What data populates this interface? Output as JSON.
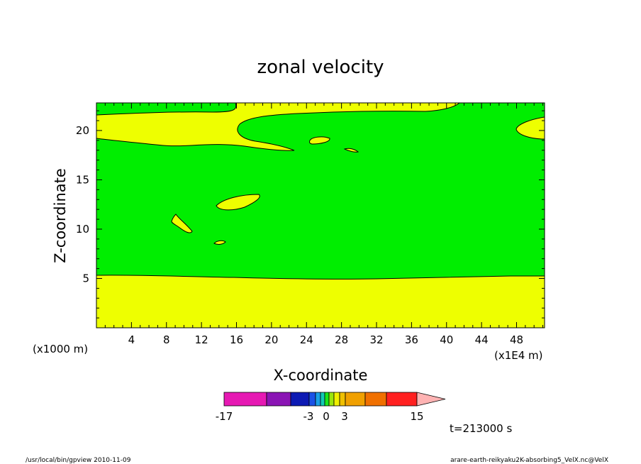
{
  "chart_data": {
    "type": "heatmap",
    "title": "zonal velocity",
    "xlabel": "X-coordinate",
    "ylabel": "Z-coordinate",
    "x_unit_left": "(x1000 m)",
    "x_unit_right": "(x1E4 m)",
    "x_ticks": [
      "4",
      "8",
      "12",
      "16",
      "20",
      "24",
      "28",
      "32",
      "36",
      "40",
      "44",
      "48"
    ],
    "x_tick_values": [
      4,
      8,
      12,
      16,
      20,
      24,
      28,
      32,
      36,
      40,
      44,
      48
    ],
    "y_ticks": [
      "5",
      "10",
      "15",
      "20"
    ],
    "y_tick_values": [
      5,
      10,
      15,
      20
    ],
    "xlim": [
      0,
      51.2
    ],
    "ylim": [
      0,
      22.8
    ],
    "colorbar": {
      "min_label": "-17",
      "max_label": "15",
      "mid_labels": [
        "-3",
        "0",
        "3"
      ],
      "levels": [
        -17,
        -13,
        -9,
        -5,
        -3,
        -2,
        -1,
        0,
        1,
        2,
        3,
        5,
        9,
        13,
        15
      ],
      "colors": [
        "#e619b3",
        "#8a14b4",
        "#0d1ab3",
        "#1a52e6",
        "#19a0e6",
        "#12c9b4",
        "#19e619",
        "#9be60d",
        "#f0f000",
        "#f0c000",
        "#f0a000",
        "#f07000",
        "#ff2020",
        "#ff7b7b",
        "#ffb3b3"
      ]
    },
    "fill_colors": {
      "green": "#00ee00",
      "yellow": "#eeff00"
    },
    "time_label": "t=213000 s"
  },
  "footer": {
    "left": "/usr/local/bin/gpview  2010-11-09",
    "right": "arare-earth-reikyaku2K-absorbing5_VelX.nc@VelX"
  }
}
